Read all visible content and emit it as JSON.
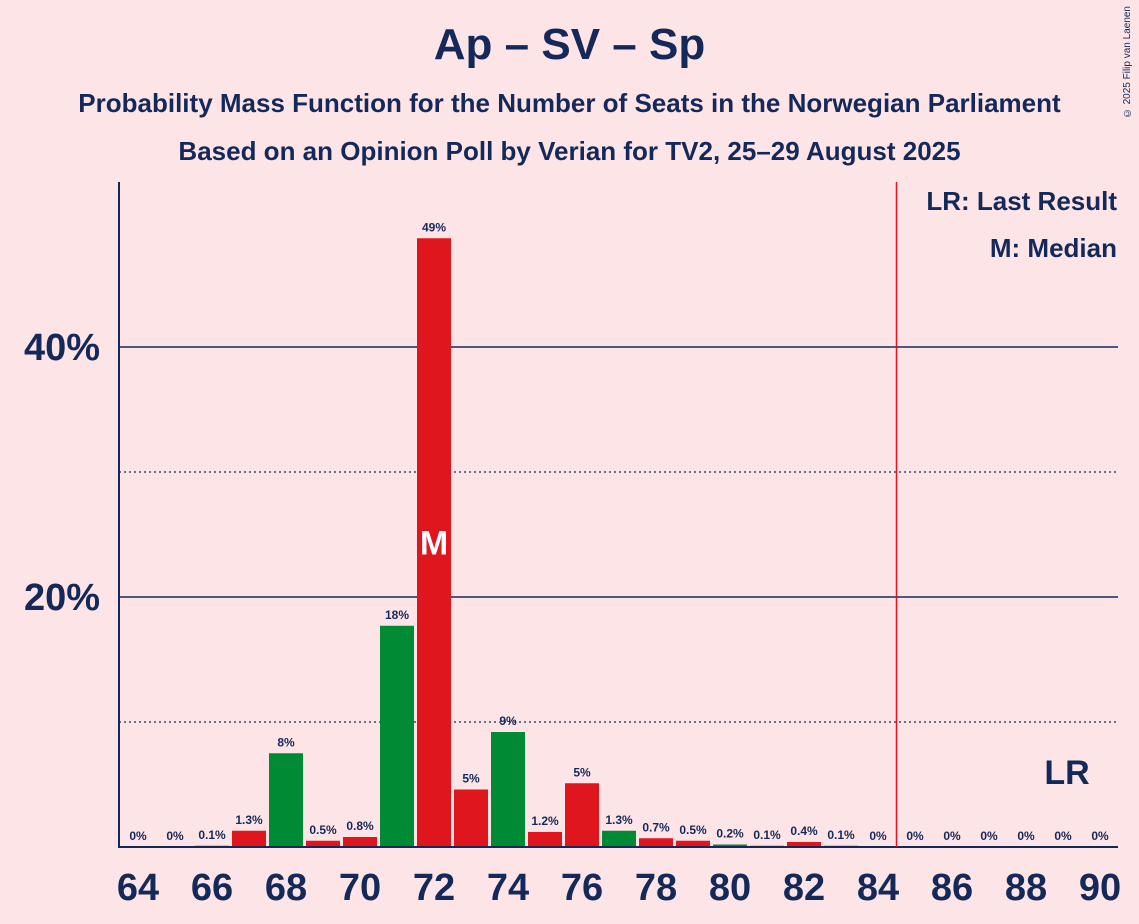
{
  "title": "Ap – SV – Sp",
  "subtitle1": "Probability Mass Function for the Number of Seats in the Norwegian Parliament",
  "subtitle2": "Based on an Opinion Poll by Verian for TV2, 25–29 August 2025",
  "copyright": "© 2025 Filip van Laenen",
  "legend": {
    "last_result": "LR: Last Result",
    "median": "M: Median"
  },
  "markers": {
    "median_label": "M",
    "last_result_label": "LR"
  },
  "colors": {
    "red": "#E0161F",
    "green": "#008A34",
    "navy": "#14295A",
    "background": "#FDE4E6"
  },
  "chart_data": {
    "type": "bar",
    "xlabel": "",
    "ylabel": "",
    "ylim": [
      0,
      53
    ],
    "y_ticks": [
      {
        "value": 20,
        "label": "20%"
      },
      {
        "value": 40,
        "label": "40%"
      }
    ],
    "minor_gridlines": [
      10,
      30
    ],
    "x_tick_labels": [
      "64",
      "66",
      "68",
      "70",
      "72",
      "74",
      "76",
      "78",
      "80",
      "82",
      "84",
      "86",
      "88",
      "90"
    ],
    "categories": [
      64,
      65,
      66,
      67,
      68,
      69,
      70,
      71,
      72,
      73,
      74,
      75,
      76,
      77,
      78,
      79,
      80,
      81,
      82,
      83,
      84,
      85,
      86,
      87,
      88,
      89,
      90
    ],
    "values": [
      0,
      0,
      0.1,
      1.3,
      7.5,
      0.5,
      0.8,
      17.7,
      48.7,
      4.6,
      9.2,
      1.2,
      5.1,
      1.3,
      0.7,
      0.5,
      0.2,
      0.1,
      0.4,
      0.1,
      0,
      0,
      0,
      0,
      0,
      0,
      0
    ],
    "labels": [
      "0%",
      "0%",
      "0.1%",
      "1.3%",
      "8%",
      "0.5%",
      "0.8%",
      "18%",
      "49%",
      "5%",
      "9%",
      "1.2%",
      "5%",
      "1.3%",
      "0.7%",
      "0.5%",
      "0.2%",
      "0.1%",
      "0.4%",
      "0.1%",
      "0%",
      "0%",
      "0%",
      "0%",
      "0%",
      "0%",
      "0%"
    ],
    "bar_colors": [
      "red",
      "red",
      "red",
      "red",
      "green",
      "red",
      "red",
      "green",
      "red",
      "red",
      "green",
      "red",
      "red",
      "green",
      "red",
      "red",
      "green",
      "red",
      "red",
      "red",
      "red",
      "red",
      "red",
      "red",
      "red",
      "red",
      "red"
    ],
    "median_seat": 72,
    "majority_line": 84.5,
    "last_result_seat": 89
  }
}
